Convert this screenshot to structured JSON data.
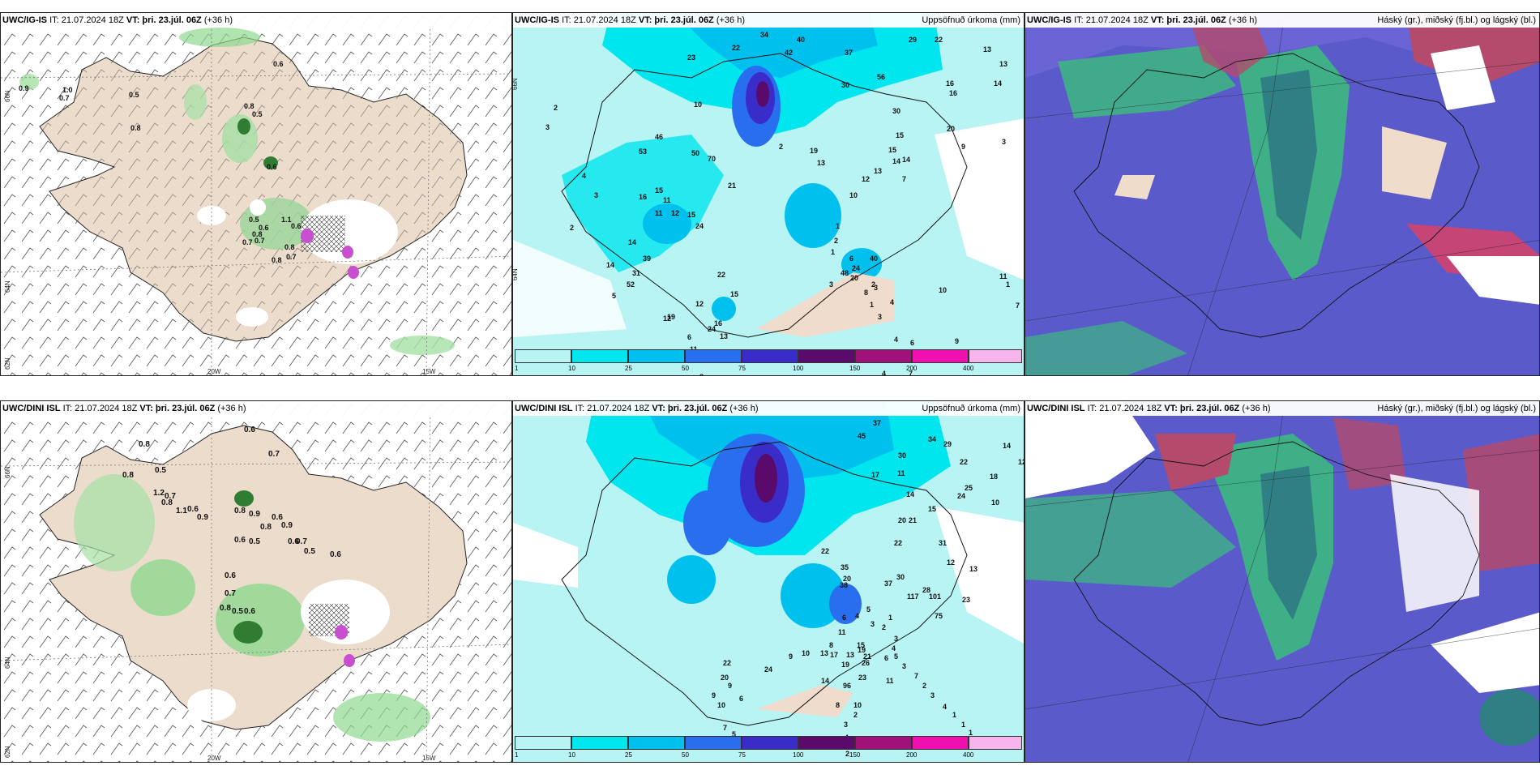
{
  "panels": {
    "p1": {
      "model": "UWC/IG-IS",
      "it": "IT: 21.07.2024 18Z",
      "vt_label": "VT:",
      "vt": "þri. 23.júl. 06Z",
      "lead": "(+36 h)",
      "right": ""
    },
    "p2": {
      "model": "UWC/IG-IS",
      "it": "IT: 21.07.2024 18Z",
      "vt_label": "VT:",
      "vt": "þri. 23.júl. 06Z",
      "lead": "(+36 h)",
      "right": "Uppsöfnuð úrkoma (mm)"
    },
    "p3": {
      "model": "UWC/IG-IS",
      "it": "IT: 21.07.2024 18Z",
      "vt_label": "VT:",
      "vt": "þri. 23.júl. 06Z",
      "lead": "(+36 h)",
      "right": "Háský (gr.), miðský (fj.bl.) og lágský (bl.)"
    },
    "p4": {
      "model": "UWC/DINI ISL",
      "it": "IT: 21.07.2024 18Z",
      "vt_label": "VT:",
      "vt": "þri. 23.júl. 06Z",
      "lead": "(+36 h)",
      "right": ""
    },
    "p5": {
      "model": "UWC/DINI ISL",
      "it": "IT: 21.07.2024 18Z",
      "vt_label": "VT:",
      "vt": "þri. 23.júl. 06Z",
      "lead": "(+36 h)",
      "right": "Uppsöfnuð úrkoma (mm)"
    },
    "p6": {
      "model": "UWC/DINI ISL",
      "it": "IT: 21.07.2024 18Z",
      "vt_label": "VT:",
      "vt": "þri. 23.júl. 06Z",
      "lead": "(+36 h)",
      "right": "Háský (gr.), miðský (fj.bl.) og lágský (bl.)"
    }
  },
  "axes": {
    "lat_66": "66N",
    "lat_64": "64N",
    "lat_62": "62N",
    "lon_20": "20W",
    "lon_15": "15W",
    "lon_25": "25W"
  },
  "colorbar": {
    "ticks": [
      "1",
      "10",
      "25",
      "50",
      "75",
      "100",
      "150",
      "200",
      "400"
    ],
    "colors": [
      "#b8f4f4",
      "#00e6ee",
      "#00c0ee",
      "#2a6ef0",
      "#3a2cc8",
      "#5a0a6a",
      "#a0127a",
      "#f010b0",
      "#f8b4ec"
    ]
  },
  "values": {
    "p1": [
      "0.9",
      "1.0",
      "0.7",
      "0.5",
      "0.8",
      "0.6",
      "0.8",
      "0.6",
      "0.5",
      "0.5",
      "0.6",
      "0.8",
      "0.7",
      "0.7",
      "1.1",
      "0.8",
      "0.7",
      "0.6",
      "0.8"
    ],
    "p4": [
      "0.7",
      "0.8",
      "0.6",
      "0.7",
      "0.7",
      "0.6",
      "0.8",
      "0.7",
      "0.8",
      "0.5",
      "1.2",
      "0.7",
      "0.8",
      "1.1",
      "0.6",
      "0.9",
      "0.8",
      "0.9",
      "0.6",
      "0.8",
      "0.9",
      "0.6",
      "0.5",
      "0.6",
      "0.7",
      "0.5",
      "0.6",
      "0.6",
      "0.7",
      "0.8",
      "0.5",
      "0.6"
    ],
    "p2": [
      "34",
      "40",
      "22",
      "23",
      "42",
      "37",
      "29",
      "22",
      "13",
      "13",
      "14",
      "16",
      "56",
      "30",
      "30",
      "16",
      "10",
      "20",
      "15",
      "14",
      "3",
      "9",
      "7",
      "13",
      "12",
      "10",
      "46",
      "53",
      "50",
      "70",
      "19",
      "13",
      "15",
      "14",
      "21",
      "11",
      "11",
      "16",
      "15",
      "15",
      "12",
      "24",
      "14",
      "39",
      "31",
      "14",
      "52",
      "22",
      "15",
      "16",
      "13",
      "17",
      "2",
      "3",
      "4",
      "3",
      "2",
      "5",
      "12",
      "24",
      "12",
      "6",
      "11",
      "19",
      "8",
      "11",
      "10",
      "9",
      "7",
      "1",
      "1",
      "1",
      "2",
      "1",
      "6",
      "48",
      "20",
      "40",
      "24",
      "8",
      "3",
      "1",
      "3",
      "4",
      "6",
      "5",
      "7",
      "4",
      "4",
      "2",
      "3",
      "2"
    ],
    "p5": [
      "37",
      "45",
      "34",
      "29",
      "14",
      "12",
      "30",
      "22",
      "18",
      "11",
      "17",
      "25",
      "24",
      "14",
      "15",
      "20",
      "21",
      "10",
      "22",
      "31",
      "12",
      "13",
      "30",
      "37",
      "38",
      "35",
      "20",
      "22",
      "28",
      "23",
      "117",
      "101",
      "75",
      "96",
      "21",
      "26",
      "23",
      "19",
      "15",
      "14",
      "17",
      "19",
      "13",
      "11",
      "10",
      "8",
      "2",
      "3",
      "4",
      "2",
      "5",
      "6",
      "7",
      "9",
      "10",
      "9",
      "20",
      "22",
      "24",
      "9",
      "10",
      "13",
      "8",
      "11",
      "6",
      "4",
      "5",
      "3",
      "2",
      "1",
      "3",
      "4",
      "6",
      "5",
      "3",
      "7",
      "2",
      "3",
      "4",
      "1",
      "1",
      "1",
      "2"
    ]
  }
}
